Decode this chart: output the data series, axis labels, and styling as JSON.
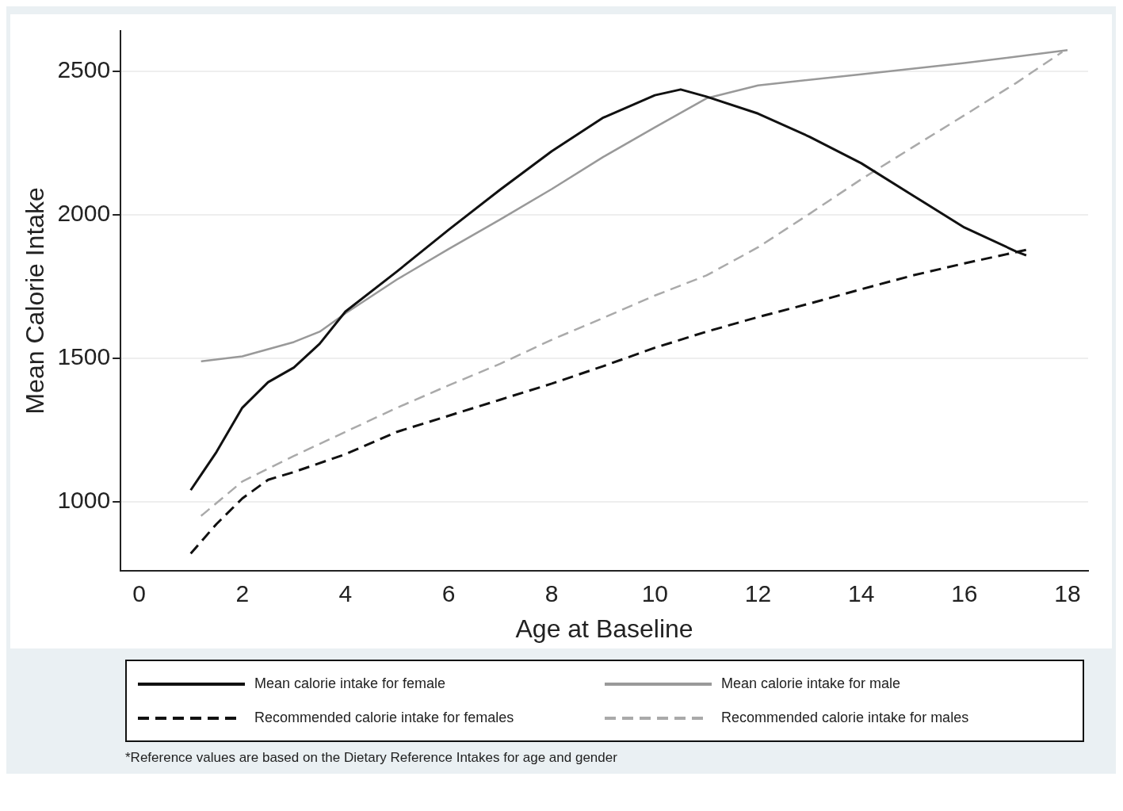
{
  "chart_data": {
    "type": "line",
    "xlabel": "Age at Baseline",
    "ylabel": "Mean Calorie Intake",
    "xlim": [
      -0.36,
      18.4
    ],
    "ylim": [
      760,
      2640
    ],
    "xticks": [
      0,
      2,
      4,
      6,
      8,
      10,
      12,
      14,
      16,
      18
    ],
    "yticks": [
      1000,
      1500,
      2000,
      2500
    ],
    "grid": "y",
    "legend": "bottom",
    "marker": "none",
    "annotations": [
      "*Reference values are based on the Dietary Reference Intakes for age and gender"
    ],
    "series": [
      {
        "name": "Mean calorie intake for female",
        "color": "#111111",
        "line_style": "solid",
        "x": [
          1,
          1.5,
          2,
          2.5,
          3,
          3.5,
          4,
          5,
          6,
          7,
          8,
          9,
          10,
          10.5,
          11,
          12,
          13,
          14,
          15,
          16,
          17,
          17.2
        ],
        "values": [
          1040,
          1173,
          1327,
          1416,
          1467,
          1550,
          1662,
          1802,
          1947,
          2087,
          2221,
          2338,
          2416,
          2436,
          2411,
          2352,
          2271,
          2179,
          2067,
          1955,
          1872,
          1858
        ]
      },
      {
        "name": "Mean calorie intake for male",
        "color": "#999999",
        "line_style": "solid",
        "x": [
          1.2,
          2,
          3,
          3.5,
          4,
          5,
          6,
          7,
          8,
          9,
          10,
          11,
          12,
          14,
          16,
          18
        ],
        "values": [
          1489,
          1506,
          1556,
          1592,
          1656,
          1774,
          1880,
          1983,
          2089,
          2201,
          2304,
          2405,
          2450,
          2489,
          2528,
          2573
        ]
      },
      {
        "name": "Recommended calorie intake for females",
        "color": "#111111",
        "line_style": "dashed",
        "x": [
          1,
          1.5,
          2,
          2.5,
          3,
          4,
          5,
          6,
          7,
          8,
          9,
          10,
          11,
          12,
          13,
          14,
          15,
          16,
          17.2
        ],
        "values": [
          819,
          922,
          1011,
          1076,
          1103,
          1165,
          1243,
          1299,
          1355,
          1411,
          1472,
          1536,
          1592,
          1643,
          1690,
          1740,
          1788,
          1830,
          1877
        ]
      },
      {
        "name": "Recommended calorie intake for males",
        "color": "#aaaaaa",
        "line_style": "dashed",
        "x": [
          1.2,
          2,
          3,
          4,
          5,
          6,
          7,
          8,
          9,
          10,
          11,
          12,
          13,
          14,
          15,
          16,
          17,
          17.9
        ],
        "values": [
          950,
          1070,
          1159,
          1243,
          1327,
          1405,
          1480,
          1564,
          1640,
          1718,
          1788,
          1886,
          2003,
          2123,
          2235,
          2346,
          2458,
          2567
        ]
      }
    ]
  }
}
